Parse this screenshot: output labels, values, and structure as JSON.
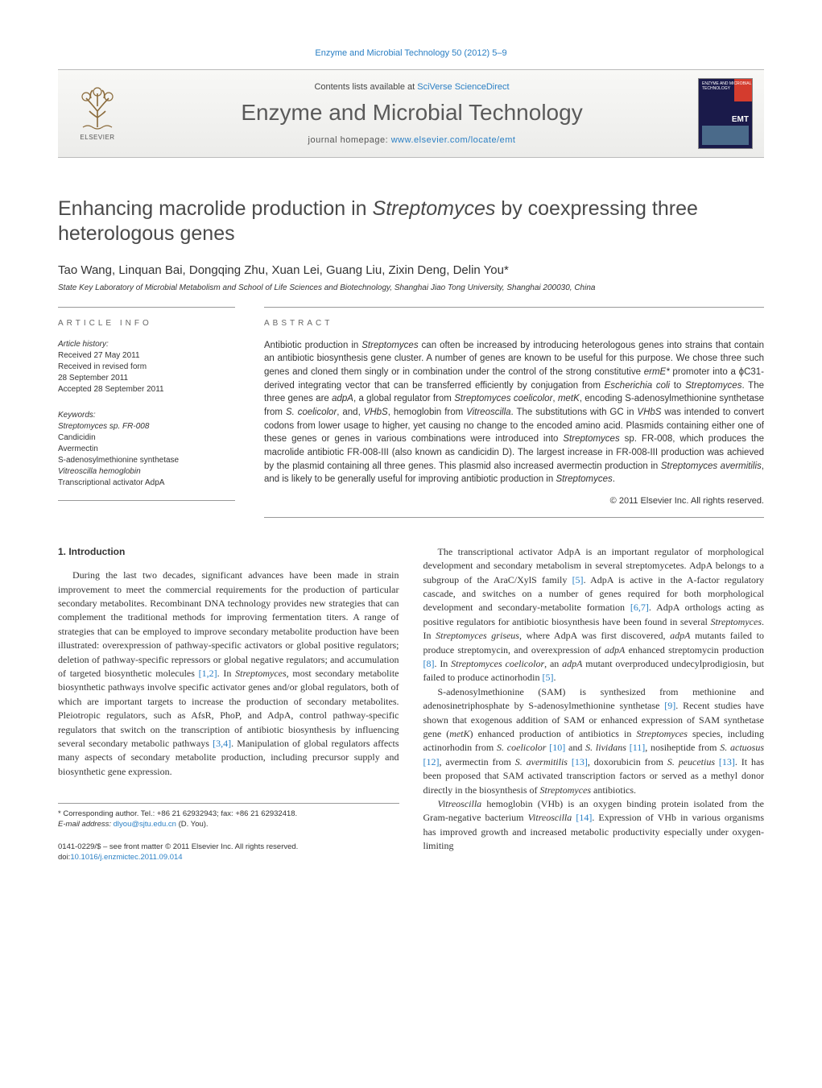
{
  "top_link": "Enzyme and Microbial Technology 50 (2012) 5–9",
  "header": {
    "contents_prefix": "Contents lists available at ",
    "contents_link": "SciVerse ScienceDirect",
    "journal": "Enzyme and Microbial Technology",
    "homepage_prefix": "journal homepage: ",
    "homepage_url": "www.elsevier.com/locate/emt",
    "elsevier": "ELSEVIER",
    "cover_label": "ENZYME AND MICROBIAL TECHNOLOGY",
    "cover_emt": "EMT"
  },
  "title_pre": "Enhancing macrolide production in ",
  "title_em": "Streptomyces",
  "title_post": " by coexpressing three heterologous genes",
  "authors": "Tao Wang, Linquan Bai, Dongqing Zhu, Xuan Lei, Guang Liu, Zixin Deng, Delin You",
  "corr_mark": "*",
  "affiliation": "State Key Laboratory of Microbial Metabolism and School of Life Sciences and Biotechnology, Shanghai Jiao Tong University, Shanghai 200030, China",
  "article_info_label": "article info",
  "abstract_label": "abstract",
  "history": {
    "title": "Article history:",
    "received": "Received 27 May 2011",
    "revised1": "Received in revised form",
    "revised2": "28 September 2011",
    "accepted": "Accepted 28 September 2011"
  },
  "keywords": {
    "title": "Keywords:",
    "items": [
      "Streptomyces sp. FR-008",
      "Candicidin",
      "Avermectin",
      "S-adenosylmethionine synthetase",
      "Vitreoscilla hemoglobin",
      "Transcriptional activator AdpA"
    ]
  },
  "abstract_html": "Antibiotic production in <em>Streptomyces</em> can often be increased by introducing heterologous genes into strains that contain an antibiotic biosynthesis gene cluster. A number of genes are known to be useful for this purpose. We chose three such genes and cloned them singly or in combination under the control of the strong constitutive <em>ermE*</em> promoter into a ϕC31-derived integrating vector that can be transferred efficiently by conjugation from <em>Escherichia coli</em> to <em>Streptomyces</em>. The three genes are <em>adpA</em>, a global regulator from <em>Streptomyces coelicolor</em>, <em>metK</em>, encoding S-adenosylmethionine synthetase from <em>S. coelicolor</em>, and, <em>VHbS</em>, hemoglobin from <em>Vitreoscilla</em>. The substitutions with GC in <em>VHbS</em> was intended to convert codons from lower usage to higher, yet causing no change to the encoded amino acid. Plasmids containing either one of these genes or genes in various combinations were introduced into <em>Streptomyces</em> sp. FR-008, which produces the macrolide antibiotic FR-008-III (also known as candicidin D). The largest increase in FR-008-III production was achieved by the plasmid containing all three genes. This plasmid also increased avermectin production in <em>Streptomyces avermitilis</em>, and is likely to be generally useful for improving antibiotic production in <em>Streptomyces</em>.",
  "copyright": "© 2011 Elsevier Inc. All rights reserved.",
  "intro_heading": "1. Introduction",
  "col1_p1_html": "During the last two decades, significant advances have been made in strain improvement to meet the commercial requirements for the production of particular secondary metabolites. Recombinant DNA technology provides new strategies that can complement the traditional methods for improving fermentation titers. A range of strategies that can be employed to improve secondary metabolite production have been illustrated: overexpression of pathway-specific activators or global positive regulators; deletion of pathway-specific repressors or global negative regulators; and accumulation of targeted biosynthetic molecules <span class=\"ref\">[1,2]</span>. In <em>Streptomyces</em>, most secondary metabolite biosynthetic pathways involve specific activator genes and/or global regulators, both of which are important targets to increase the production of secondary metabolites. Pleiotropic regulators, such as AfsR, PhoP, and AdpA, control pathway-specific regulators that switch on the transcription of antibiotic biosynthesis by influencing several secondary metabolic pathways <span class=\"ref\">[3,4]</span>. Manipulation of global regulators affects many aspects of secondary metabolite production, including precursor supply and biosynthetic gene expression.",
  "col2_p1_html": "The transcriptional activator AdpA is an important regulator of morphological development and secondary metabolism in several streptomycetes. AdpA belongs to a subgroup of the AraC/XylS family <span class=\"ref\">[5]</span>. AdpA is active in the A-factor regulatory cascade, and switches on a number of genes required for both morphological development and secondary-metabolite formation <span class=\"ref\">[6,7]</span>. AdpA orthologs acting as positive regulators for antibiotic biosynthesis have been found in several <em>Streptomyces</em>. In <em>Streptomyces griseus</em>, where AdpA was first discovered, <em>adpA</em> mutants failed to produce streptomycin, and overexpression of <em>adpA</em> enhanced streptomycin production <span class=\"ref\">[8]</span>. In <em>Streptomyces coelicolor</em>, an <em>adpA</em> mutant overproduced undecylprodigiosin, but failed to produce actinorhodin <span class=\"ref\">[5]</span>.",
  "col2_p2_html": "S-adenosylmethionine (SAM) is synthesized from methionine and adenosinetriphosphate by S-adenosylmethionine synthetase <span class=\"ref\">[9]</span>. Recent studies have shown that exogenous addition of SAM or enhanced expression of SAM synthetase gene (<em>metK</em>) enhanced production of antibiotics in <em>Streptomyces</em> species, including actinorhodin from <em>S. coelicolor</em> <span class=\"ref\">[10]</span> and <em>S. lividans</em> <span class=\"ref\">[11]</span>, nosiheptide from <em>S. actuosus</em> <span class=\"ref\">[12]</span>, avermectin from <em>S. avermitilis</em> <span class=\"ref\">[13]</span>, doxorubicin from <em>S. peucetius</em> <span class=\"ref\">[13]</span>. It has been proposed that SAM activated transcription factors or served as a methyl donor directly in the biosynthesis of <em>Streptomyces</em> antibiotics.",
  "col2_p3_html": "<em>Vitreoscilla</em> hemoglobin (VHb) is an oxygen binding protein isolated from the Gram-negative bacterium <em>Vitreoscilla</em> <span class=\"ref\">[14]</span>. Expression of VHb in various organisms has improved growth and increased metabolic productivity especially under oxygen-limiting",
  "footnote_corr": "* Corresponding author. Tel.: +86 21 62932943; fax: +86 21 62932418.",
  "footnote_email_label": "E-mail address: ",
  "footnote_email": "dlyou@sjtu.edu.cn",
  "footnote_email_who": " (D. You).",
  "footer_issn": "0141-0229/$ – see front matter © 2011 Elsevier Inc. All rights reserved.",
  "footer_doi_label": "doi:",
  "footer_doi": "10.1016/j.enzmictec.2011.09.014"
}
